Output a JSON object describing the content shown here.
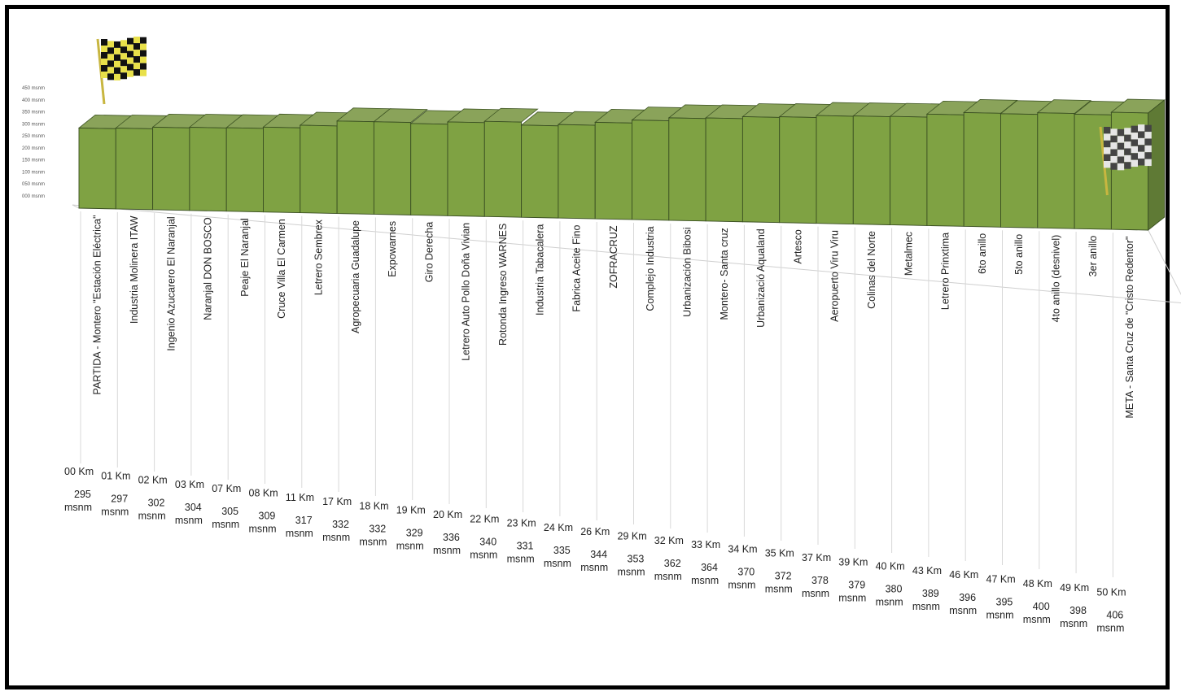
{
  "chart_data": {
    "type": "bar",
    "style": "3d-column-profile",
    "y_tick_labels": [
      "450 msnm",
      "400 msnm",
      "350 msnm",
      "300 msnm",
      "250 msnm",
      "200 msnm",
      "150 msnm",
      "100 msnm",
      "050 msnm",
      "000 msnm"
    ],
    "ylim": [
      0,
      450
    ],
    "unit": "msnm",
    "categories": [
      "PARTIDA - Montero \"Estación Eléctrica\"",
      "Industria Molinera ITAW",
      "Ingenio Azucarero El Naranjal",
      "Naranjal DON BOSCO",
      "Peaje El Naranjal",
      "Cruce Villa El Carmen",
      "Letrero Sembrex",
      "Agropecuaria Guadalupe",
      "Expowarnes",
      "Giro Derecha",
      "Letrero Auto Pollo Doña Vivian",
      "Rotonda Ingreso WARNES",
      "Industria Tabacalera",
      "Fabrica Aceite Fino",
      "ZOFRACRUZ",
      "Complejo Industria",
      "Urbanización Bibosi",
      "Montero- Santa cruz",
      "Urbanizació Aqualand",
      "Artesco",
      "Aeropuerto Viru Viru",
      "Colinas del Norte",
      "Metalmec",
      "Letrero Prinxtima",
      "6to anillo",
      "5to anillo",
      "4to anillo (desnivel)",
      "3er anillo",
      "META - Santa Cruz de \"Cristo Redentor\""
    ],
    "km": [
      "00 Km",
      "01 Km",
      "02 Km",
      "03 Km",
      "07 Km",
      "08 Km",
      "11 Km",
      "17 Km",
      "18 Km",
      "19 Km",
      "20 Km",
      "22 Km",
      "23 Km",
      "24 Km",
      "26 Km",
      "29 Km",
      "32 Km",
      "33 Km",
      "34 Km",
      "35 Km",
      "37 Km",
      "39 Km",
      "40 Km",
      "43 Km",
      "46 Km",
      "47 Km",
      "48 Km",
      "49 Km",
      "50 Km"
    ],
    "values": [
      295,
      297,
      302,
      304,
      305,
      309,
      317,
      332,
      332,
      329,
      336,
      340,
      331,
      335,
      344,
      353,
      362,
      364,
      370,
      372,
      378,
      379,
      380,
      389,
      396,
      395,
      400,
      398,
      406
    ]
  }
}
